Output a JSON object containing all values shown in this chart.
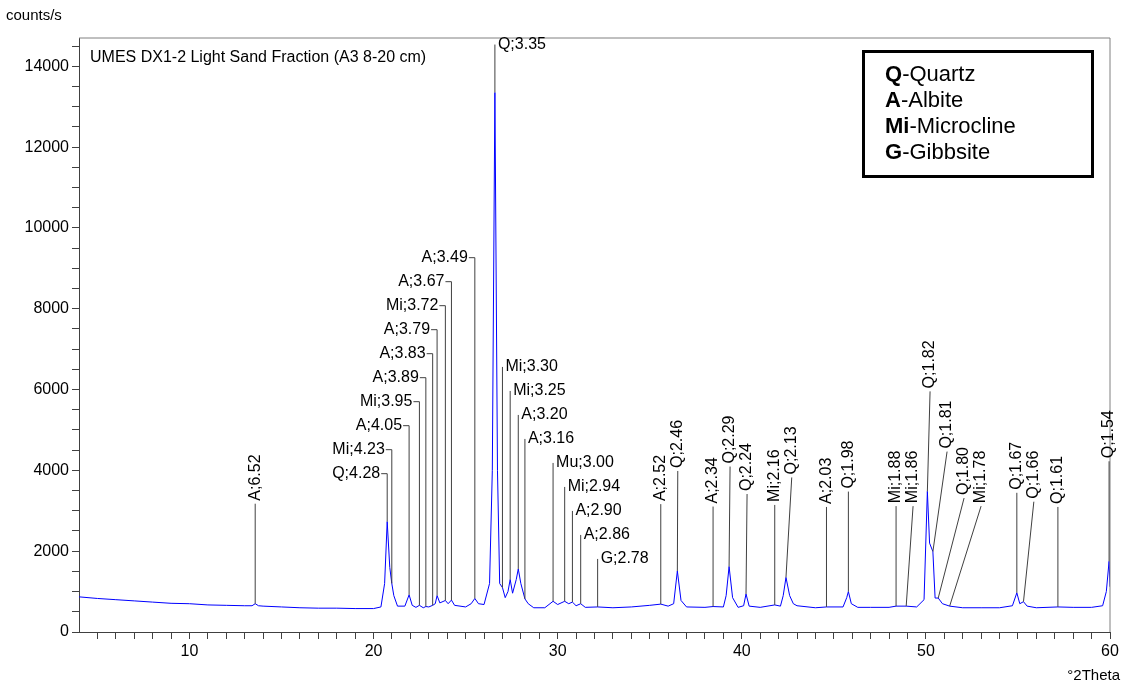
{
  "chart_data": {
    "type": "line",
    "title": "UMES DX1-2 Light Sand Fraction (A3 8-20 cm)",
    "xlabel": "°2Theta",
    "ylabel": "counts/s",
    "x": [
      4,
      5,
      6,
      7,
      8,
      9,
      10,
      11,
      12,
      13,
      13.4,
      13.57,
      13.75,
      14,
      15,
      16,
      17,
      18,
      19,
      20,
      20.4,
      20.6,
      20.74,
      20.88,
      20.99,
      21.1,
      21.3,
      21.7,
      21.93,
      22.1,
      22.3,
      22.49,
      22.7,
      22.84,
      23.0,
      23.21,
      23.35,
      23.45,
      23.6,
      23.9,
      24.05,
      24.23,
      24.4,
      25.0,
      25.3,
      25.5,
      25.7,
      26.0,
      26.3,
      26.45,
      26.59,
      26.73,
      26.85,
      27.0,
      27.15,
      27.3,
      27.42,
      27.55,
      27.75,
      27.86,
      28.0,
      28.22,
      28.4,
      28.7,
      29.3,
      29.75,
      30.0,
      30.38,
      30.6,
      30.8,
      31.0,
      31.25,
      31.5,
      32.17,
      33,
      34,
      35,
      35.6,
      36.0,
      36.3,
      36.5,
      36.7,
      37,
      38,
      38.44,
      39.0,
      39.15,
      39.31,
      39.5,
      39.8,
      40.1,
      40.23,
      40.4,
      41,
      41.79,
      42.1,
      42.25,
      42.4,
      42.6,
      42.8,
      43.0,
      44,
      44.6,
      45.5,
      45.7,
      45.79,
      45.95,
      46.3,
      47,
      48,
      48.38,
      48.93,
      49.5,
      49.9,
      50.08,
      50.2,
      50.38,
      50.5,
      50.67,
      50.9,
      51.29,
      52,
      53,
      54,
      54.7,
      54.94,
      55.1,
      55.3,
      55.5,
      56,
      57.17,
      58,
      59,
      59.6,
      59.8,
      59.95,
      60
    ],
    "series": [
      {
        "color": "#0000ff",
        "values": [
          870,
          830,
          800,
          770,
          740,
          710,
          700,
          670,
          660,
          650,
          650,
          700,
          650,
          640,
          620,
          600,
          590,
          590,
          580,
          580,
          620,
          1200,
          2730,
          1600,
          1200,
          900,
          640,
          640,
          920,
          660,
          610,
          660,
          600,
          630,
          620,
          660,
          700,
          900,
          720,
          780,
          700,
          790,
          660,
          620,
          700,
          830,
          700,
          680,
          1200,
          4000,
          13350,
          4000,
          1200,
          1100,
          850,
          1000,
          1300,
          960,
          1300,
          1560,
          1200,
          820,
          700,
          600,
          600,
          760,
          680,
          760,
          700,
          740,
          650,
          700,
          610,
          620,
          600,
          620,
          660,
          690,
          640,
          700,
          1510,
          780,
          620,
          610,
          630,
          620,
          900,
          1620,
          850,
          610,
          650,
          940,
          640,
          610,
          670,
          640,
          900,
          1350,
          900,
          700,
          650,
          600,
          620,
          620,
          850,
          1000,
          700,
          610,
          610,
          610,
          640,
          640,
          620,
          800,
          3480,
          2200,
          1990,
          840,
          840,
          700,
          640,
          600,
          600,
          600,
          650,
          970,
          700,
          750,
          640,
          600,
          620,
          610,
          610,
          650,
          1000,
          1750,
          1120
        ]
      }
    ],
    "xlim": [
      4,
      60
    ],
    "ylim": [
      0,
      14700
    ],
    "xticks": [
      {
        "value": 5,
        "label": null
      },
      {
        "value": 6,
        "label": null
      },
      {
        "value": 7,
        "label": null
      },
      {
        "value": 8,
        "label": null
      },
      {
        "value": 9,
        "label": null
      },
      10,
      {
        "value": 11,
        "label": null
      },
      {
        "value": 12,
        "label": null
      },
      {
        "value": 13,
        "label": null
      },
      {
        "value": 14,
        "label": null
      },
      {
        "value": 15,
        "label": null
      },
      {
        "value": 16,
        "label": null
      },
      {
        "value": 17,
        "label": null
      },
      {
        "value": 18,
        "label": null
      },
      {
        "value": 19,
        "label": null
      },
      20,
      {
        "value": 21,
        "label": null
      },
      {
        "value": 22,
        "label": null
      },
      {
        "value": 23,
        "label": null
      },
      {
        "value": 24,
        "label": null
      },
      {
        "value": 25,
        "label": null
      },
      {
        "value": 26,
        "label": null
      },
      {
        "value": 27,
        "label": null
      },
      {
        "value": 28,
        "label": null
      },
      {
        "value": 29,
        "label": null
      },
      30,
      {
        "value": 31,
        "label": null
      },
      {
        "value": 32,
        "label": null
      },
      {
        "value": 33,
        "label": null
      },
      {
        "value": 34,
        "label": null
      },
      {
        "value": 35,
        "label": null
      },
      {
        "value": 36,
        "label": null
      },
      {
        "value": 37,
        "label": null
      },
      {
        "value": 38,
        "label": null
      },
      {
        "value": 39,
        "label": null
      },
      40,
      {
        "value": 41,
        "label": null
      },
      {
        "value": 42,
        "label": null
      },
      {
        "value": 43,
        "label": null
      },
      {
        "value": 44,
        "label": null
      },
      {
        "value": 45,
        "label": null
      },
      {
        "value": 46,
        "label": null
      },
      {
        "value": 47,
        "label": null
      },
      {
        "value": 48,
        "label": null
      },
      {
        "value": 49,
        "label": null
      },
      50,
      {
        "value": 51,
        "label": null
      },
      {
        "value": 52,
        "label": null
      },
      {
        "value": 53,
        "label": null
      },
      {
        "value": 54,
        "label": null
      },
      {
        "value": 55,
        "label": null
      },
      {
        "value": 56,
        "label": null
      },
      {
        "value": 57,
        "label": null
      },
      {
        "value": 58,
        "label": null
      },
      {
        "value": 59,
        "label": null
      },
      60
    ],
    "yticks": [
      0,
      {
        "value": 500,
        "label": null
      },
      {
        "value": 1000,
        "label": null
      },
      {
        "value": 1500,
        "label": null
      },
      2000,
      {
        "value": 2500,
        "label": null
      },
      {
        "value": 3000,
        "label": null
      },
      {
        "value": 3500,
        "label": null
      },
      4000,
      {
        "value": 4500,
        "label": null
      },
      {
        "value": 5000,
        "label": null
      },
      {
        "value": 5500,
        "label": null
      },
      6000,
      {
        "value": 6500,
        "label": null
      },
      {
        "value": 7000,
        "label": null
      },
      {
        "value": 7500,
        "label": null
      },
      8000,
      {
        "value": 8500,
        "label": null
      },
      {
        "value": 9000,
        "label": null
      },
      {
        "value": 9500,
        "label": null
      },
      10000,
      {
        "value": 10500,
        "label": null
      },
      {
        "value": 11000,
        "label": null
      },
      {
        "value": 11500,
        "label": null
      },
      12000,
      {
        "value": 12500,
        "label": null
      },
      {
        "value": 13000,
        "label": null
      },
      {
        "value": 13500,
        "label": null
      },
      14000,
      {
        "value": 14500,
        "label": null
      }
    ],
    "grid": false,
    "annotations": [
      "Q-Quartz",
      "A-Albite",
      "Mi-Microcline",
      "G-Gibbsite",
      {
        "text": "A;6.52",
        "x": 13.57,
        "y": 700
      },
      {
        "text": "Q;4.28",
        "x": 20.74,
        "y": 2730
      },
      {
        "text": "Mi;4.23",
        "x": 20.99,
        "y": 1200
      },
      {
        "text": "A;4.05",
        "x": 21.93,
        "y": 920
      },
      {
        "text": "Mi;3.95",
        "x": 22.49,
        "y": 660
      },
      {
        "text": "A;3.89",
        "x": 22.84,
        "y": 630
      },
      {
        "text": "A;3.83",
        "x": 23.21,
        "y": 660
      },
      {
        "text": "A;3.79",
        "x": 23.45,
        "y": 900
      },
      {
        "text": "Mi;3.72",
        "x": 23.9,
        "y": 780
      },
      {
        "text": "A;3.67",
        "x": 24.23,
        "y": 790
      },
      {
        "text": "A;3.49",
        "x": 25.5,
        "y": 830
      },
      {
        "text": "Q;3.35",
        "x": 26.59,
        "y": 13350
      },
      {
        "text": "Mi;3.30",
        "x": 27.0,
        "y": 1100
      },
      {
        "text": "Mi;3.25",
        "x": 27.42,
        "y": 1300
      },
      {
        "text": "A;3.20",
        "x": 27.86,
        "y": 1560
      },
      {
        "text": "A;3.16",
        "x": 28.22,
        "y": 820
      },
      {
        "text": "Mu;3.00",
        "x": 29.75,
        "y": 760
      },
      {
        "text": "Mi;2.94",
        "x": 30.38,
        "y": 760
      },
      {
        "text": "A;2.90",
        "x": 30.8,
        "y": 740
      },
      {
        "text": "A;2.86",
        "x": 31.25,
        "y": 700
      },
      {
        "text": "G;2.78",
        "x": 32.17,
        "y": 620
      },
      {
        "text": "A;2.52",
        "x": 35.6,
        "y": 690
      },
      {
        "text": "Q;2.46",
        "x": 36.5,
        "y": 1510
      },
      {
        "text": "A;2.34",
        "x": 38.44,
        "y": 630
      },
      {
        "text": "Q;2.29",
        "x": 39.31,
        "y": 1620
      },
      {
        "text": "Q;2.24",
        "x": 40.23,
        "y": 940
      },
      {
        "text": "Mi;2.16",
        "x": 41.79,
        "y": 670
      },
      {
        "text": "Q;2.13",
        "x": 42.4,
        "y": 1350
      },
      {
        "text": "A;2.03",
        "x": 44.6,
        "y": 620
      },
      {
        "text": "Q;1.98",
        "x": 45.79,
        "y": 1000
      },
      {
        "text": "Mi;1.88",
        "x": 48.38,
        "y": 640
      },
      {
        "text": "Mi;1.86",
        "x": 48.93,
        "y": 640
      },
      {
        "text": "Q;1.82",
        "x": 50.08,
        "y": 3480
      },
      {
        "text": "Q;1.81",
        "x": 50.38,
        "y": 1990
      },
      {
        "text": "Q;1.80",
        "x": 50.67,
        "y": 840
      },
      {
        "text": "Mi;1.78",
        "x": 51.29,
        "y": 640
      },
      {
        "text": "Q;1.67",
        "x": 54.94,
        "y": 970
      },
      {
        "text": "Q;1.66",
        "x": 55.3,
        "y": 750
      },
      {
        "text": "Q;1.61",
        "x": 57.17,
        "y": 620
      },
      {
        "text": "Q;1.54",
        "x": 59.95,
        "y": 1750
      }
    ]
  }
}
